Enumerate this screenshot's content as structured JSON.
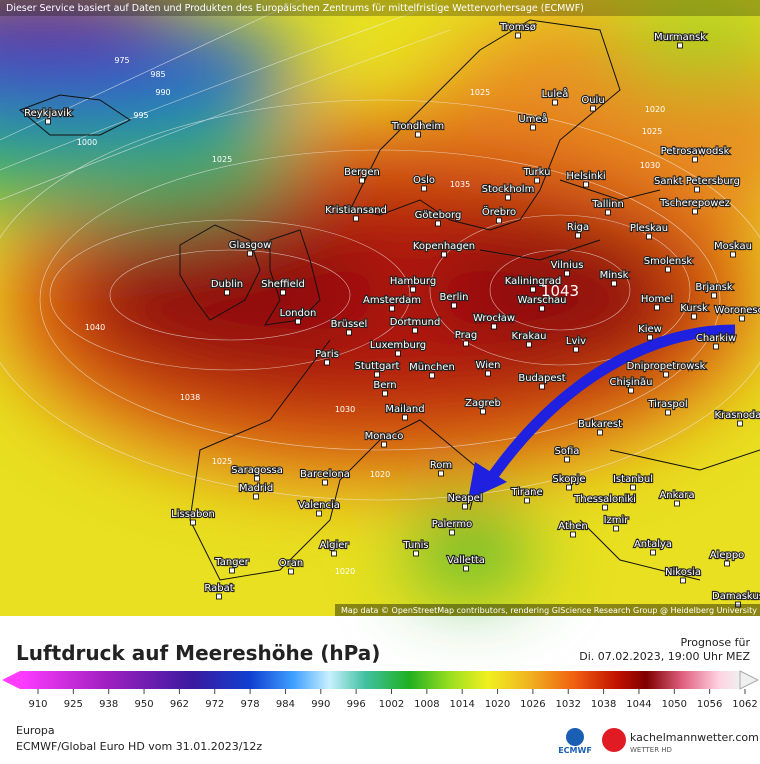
{
  "header": {
    "notice": "Dieser Service basiert auf Daten und Produkten des Europäischen Zentrums für mittelfristige Wettervorhersage (ECMWF)"
  },
  "map": {
    "cities": [
      "Tromsø",
      "Murmansk",
      "Luleå",
      "Oulu",
      "Reykjavik",
      "Umeå",
      "Trondheim",
      "Petrosawodsk",
      "Bergen",
      "Turku",
      "Helsinki",
      "Oslo",
      "Sankt Petersburg",
      "Stockholm",
      "Kristiansand",
      "Göteborg",
      "Örebro",
      "Tallinn",
      "Tscherepowez",
      "Riga",
      "Pleskau",
      "Glasgow",
      "Kopenhagen",
      "Moskau",
      "Vilnius",
      "Smolensk",
      "Minsk",
      "Kaliningrad",
      "Dublin",
      "Sheffield",
      "Hamburg",
      "Brjansk",
      "Berlin",
      "Amsterdam",
      "Warschau",
      "Homel",
      "London",
      "Kursk",
      "Woronesch",
      "Brüssel",
      "Dortmund",
      "Wrocław",
      "Kiew",
      "Charkiw",
      "Krakau",
      "Prag",
      "Luxemburg",
      "Lviv",
      "Paris",
      "Stuttgart",
      "München",
      "Wien",
      "Dnipropetrowsk",
      "Chişinău",
      "Budapest",
      "Bern",
      "Tiraspol",
      "Zagreb",
      "Mailand",
      "Krasnodar",
      "Monaco",
      "Bukarest",
      "Sofia",
      "Rom",
      "Saragossa",
      "Barcelona",
      "Skopje",
      "Istanbul",
      "Madrid",
      "Neapel",
      "Tirane",
      "Ankara",
      "Thessaloniki",
      "Valencia",
      "Lissabon",
      "Palermo",
      "Izmir",
      "Athen",
      "Algier",
      "Tunis",
      "Antalya",
      "Aleppo",
      "Tanger",
      "Oran",
      "Valletta",
      "Nikosia",
      "Rabat",
      "Damaskus"
    ],
    "isobar_labels": [
      "975",
      "985",
      "990",
      "995",
      "1000",
      "1025",
      "1025",
      "1020",
      "1025",
      "1030",
      "1035",
      "1040",
      "1038",
      "1030",
      "1025",
      "1020",
      "1020"
    ],
    "high_label": "1043",
    "attribution": "Map data © OpenStreetMap contributors, rendering GIScience Research Group @ Heidelberg University"
  },
  "legend": {
    "title": "Luftdruck auf Meereshöhe (hPa)",
    "forecast_label": "Prognose für",
    "forecast_time": "Di. 07.02.2023, 19:00 Uhr MEZ",
    "ticks": [
      "910",
      "925",
      "938",
      "950",
      "962",
      "972",
      "978",
      "984",
      "990",
      "996",
      "1002",
      "1008",
      "1014",
      "1020",
      "1026",
      "1032",
      "1038",
      "1044",
      "1050",
      "1056",
      "1062"
    ]
  },
  "footer": {
    "region": "Europa",
    "model": "ECMWF/Global Euro HD vom  31.01.2023/12z",
    "ecmwf": "ECMWF",
    "brand": "kachelmannwetter.com",
    "brand_sub": "WETTER HD"
  }
}
